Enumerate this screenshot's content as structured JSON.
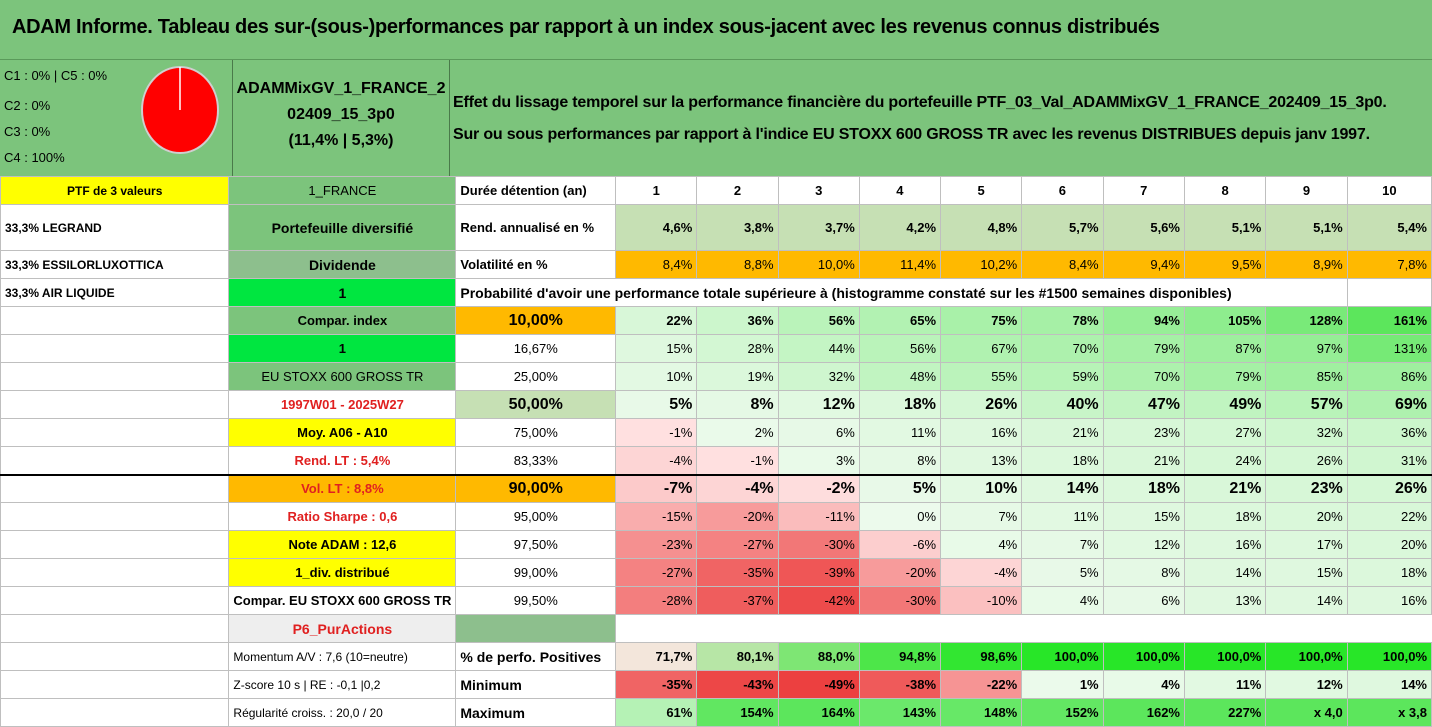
{
  "title": "ADAM Informe. Tableau des sur-(sous-)performances par rapport à un index sous-jacent avec les revenus connus distribués",
  "pie_labels": [
    "C1 : 0% | C5 : 0%",
    "C2 : 0%",
    "C3 : 0%",
    "C4 : 100%"
  ],
  "pie_chart": {
    "type": "pie",
    "values": [
      0,
      0,
      0,
      100,
      0
    ],
    "colors": [
      "#ff0000"
    ]
  },
  "portfolio": {
    "line1": "ADAMMixGV_1_FRANCE_2",
    "line2": "02409_15_3p0",
    "line3": "(11,4% | 5,3%)"
  },
  "description": {
    "line1": "Effet du lissage temporel sur la performance financière du portefeuille PTF_03_Val_ADAMMixGV_1_FRANCE_202409_15_3p0.",
    "line2": "Sur ou sous performances par rapport à l'indice EU STOXX 600 GROSS TR avec les revenus DISTRIBUES depuis janv 1997."
  },
  "col_a": [
    "PTF de 3 valeurs",
    "33,3% LEGRAND",
    "33,3% ESSILORLUXOTTICA",
    "33,3% AIR LIQUIDE"
  ],
  "col_b": [
    "1_FRANCE",
    "Portefeuille diversifié",
    "Dividende",
    "1",
    "Compar. index",
    "1",
    "EU STOXX 600 GROSS TR",
    "1997W01 - 2025W27",
    "Moy. A06 - A10",
    "Rend. LT : 5,4%",
    "Vol. LT : 8,8%",
    "Ratio Sharpe : 0,6",
    "Note ADAM : 12,6",
    "1_div. distribué",
    "Compar. EU STOXX 600 GROSS TR",
    "P6_PurActions",
    "Momentum A/V : 7,6 (10=neutre)",
    "Z-score 10 s | RE : -0,1 |0,2",
    "Régularité croiss. : 20,0 / 20"
  ],
  "header": {
    "label": "Durée détention (an)",
    "years": [
      "1",
      "2",
      "3",
      "4",
      "5",
      "6",
      "7",
      "8",
      "9",
      "10"
    ]
  },
  "rend": {
    "label": "Rend. annualisé en %",
    "values": [
      "4,6%",
      "3,8%",
      "3,7%",
      "4,2%",
      "4,8%",
      "5,7%",
      "5,6%",
      "5,1%",
      "5,1%",
      "5,4%"
    ]
  },
  "vol": {
    "label": "Volatilité en %",
    "values": [
      "8,4%",
      "8,8%",
      "10,0%",
      "11,4%",
      "10,2%",
      "8,4%",
      "9,4%",
      "9,5%",
      "8,9%",
      "7,8%"
    ]
  },
  "proba_title": "Probabilité d'avoir une performance totale supérieure à (histogramme constaté sur les #1500 semaines disponibles)",
  "prob_rows": [
    {
      "p": "10,00%",
      "v": [
        "22%",
        "36%",
        "56%",
        "65%",
        "75%",
        "78%",
        "94%",
        "105%",
        "128%",
        "161%"
      ]
    },
    {
      "p": "16,67%",
      "v": [
        "15%",
        "28%",
        "44%",
        "56%",
        "67%",
        "70%",
        "79%",
        "87%",
        "97%",
        "131%"
      ]
    },
    {
      "p": "25,00%",
      "v": [
        "10%",
        "19%",
        "32%",
        "48%",
        "55%",
        "59%",
        "70%",
        "79%",
        "85%",
        "86%"
      ]
    },
    {
      "p": "50,00%",
      "v": [
        "5%",
        "8%",
        "12%",
        "18%",
        "26%",
        "40%",
        "47%",
        "49%",
        "57%",
        "69%"
      ]
    },
    {
      "p": "75,00%",
      "v": [
        "-1%",
        "2%",
        "6%",
        "11%",
        "16%",
        "21%",
        "23%",
        "27%",
        "32%",
        "36%"
      ]
    },
    {
      "p": "83,33%",
      "v": [
        "-4%",
        "-1%",
        "3%",
        "8%",
        "13%",
        "18%",
        "21%",
        "24%",
        "26%",
        "31%"
      ]
    },
    {
      "p": "90,00%",
      "v": [
        "-7%",
        "-4%",
        "-2%",
        "5%",
        "10%",
        "14%",
        "18%",
        "21%",
        "23%",
        "26%"
      ]
    },
    {
      "p": "95,00%",
      "v": [
        "-15%",
        "-20%",
        "-11%",
        "0%",
        "7%",
        "11%",
        "15%",
        "18%",
        "20%",
        "22%"
      ]
    },
    {
      "p": "97,50%",
      "v": [
        "-23%",
        "-27%",
        "-30%",
        "-6%",
        "4%",
        "7%",
        "12%",
        "16%",
        "17%",
        "20%"
      ]
    },
    {
      "p": "99,00%",
      "v": [
        "-27%",
        "-35%",
        "-39%",
        "-20%",
        "-4%",
        "5%",
        "8%",
        "14%",
        "15%",
        "18%"
      ]
    },
    {
      "p": "99,50%",
      "v": [
        "-28%",
        "-37%",
        "-42%",
        "-30%",
        "-10%",
        "4%",
        "6%",
        "13%",
        "14%",
        "16%"
      ]
    }
  ],
  "pos": {
    "label": "% de perfo. Positives",
    "values": [
      "71,7%",
      "80,1%",
      "88,0%",
      "94,8%",
      "98,6%",
      "100,0%",
      "100,0%",
      "100,0%",
      "100,0%",
      "100,0%"
    ]
  },
  "min": {
    "label": "Minimum",
    "values": [
      "-35%",
      "-43%",
      "-49%",
      "-38%",
      "-22%",
      "1%",
      "4%",
      "11%",
      "12%",
      "14%"
    ]
  },
  "max": {
    "label": "Maximum",
    "values": [
      "61%",
      "154%",
      "164%",
      "143%",
      "148%",
      "152%",
      "162%",
      "227%",
      "x 4,0",
      "x 3,8"
    ]
  }
}
